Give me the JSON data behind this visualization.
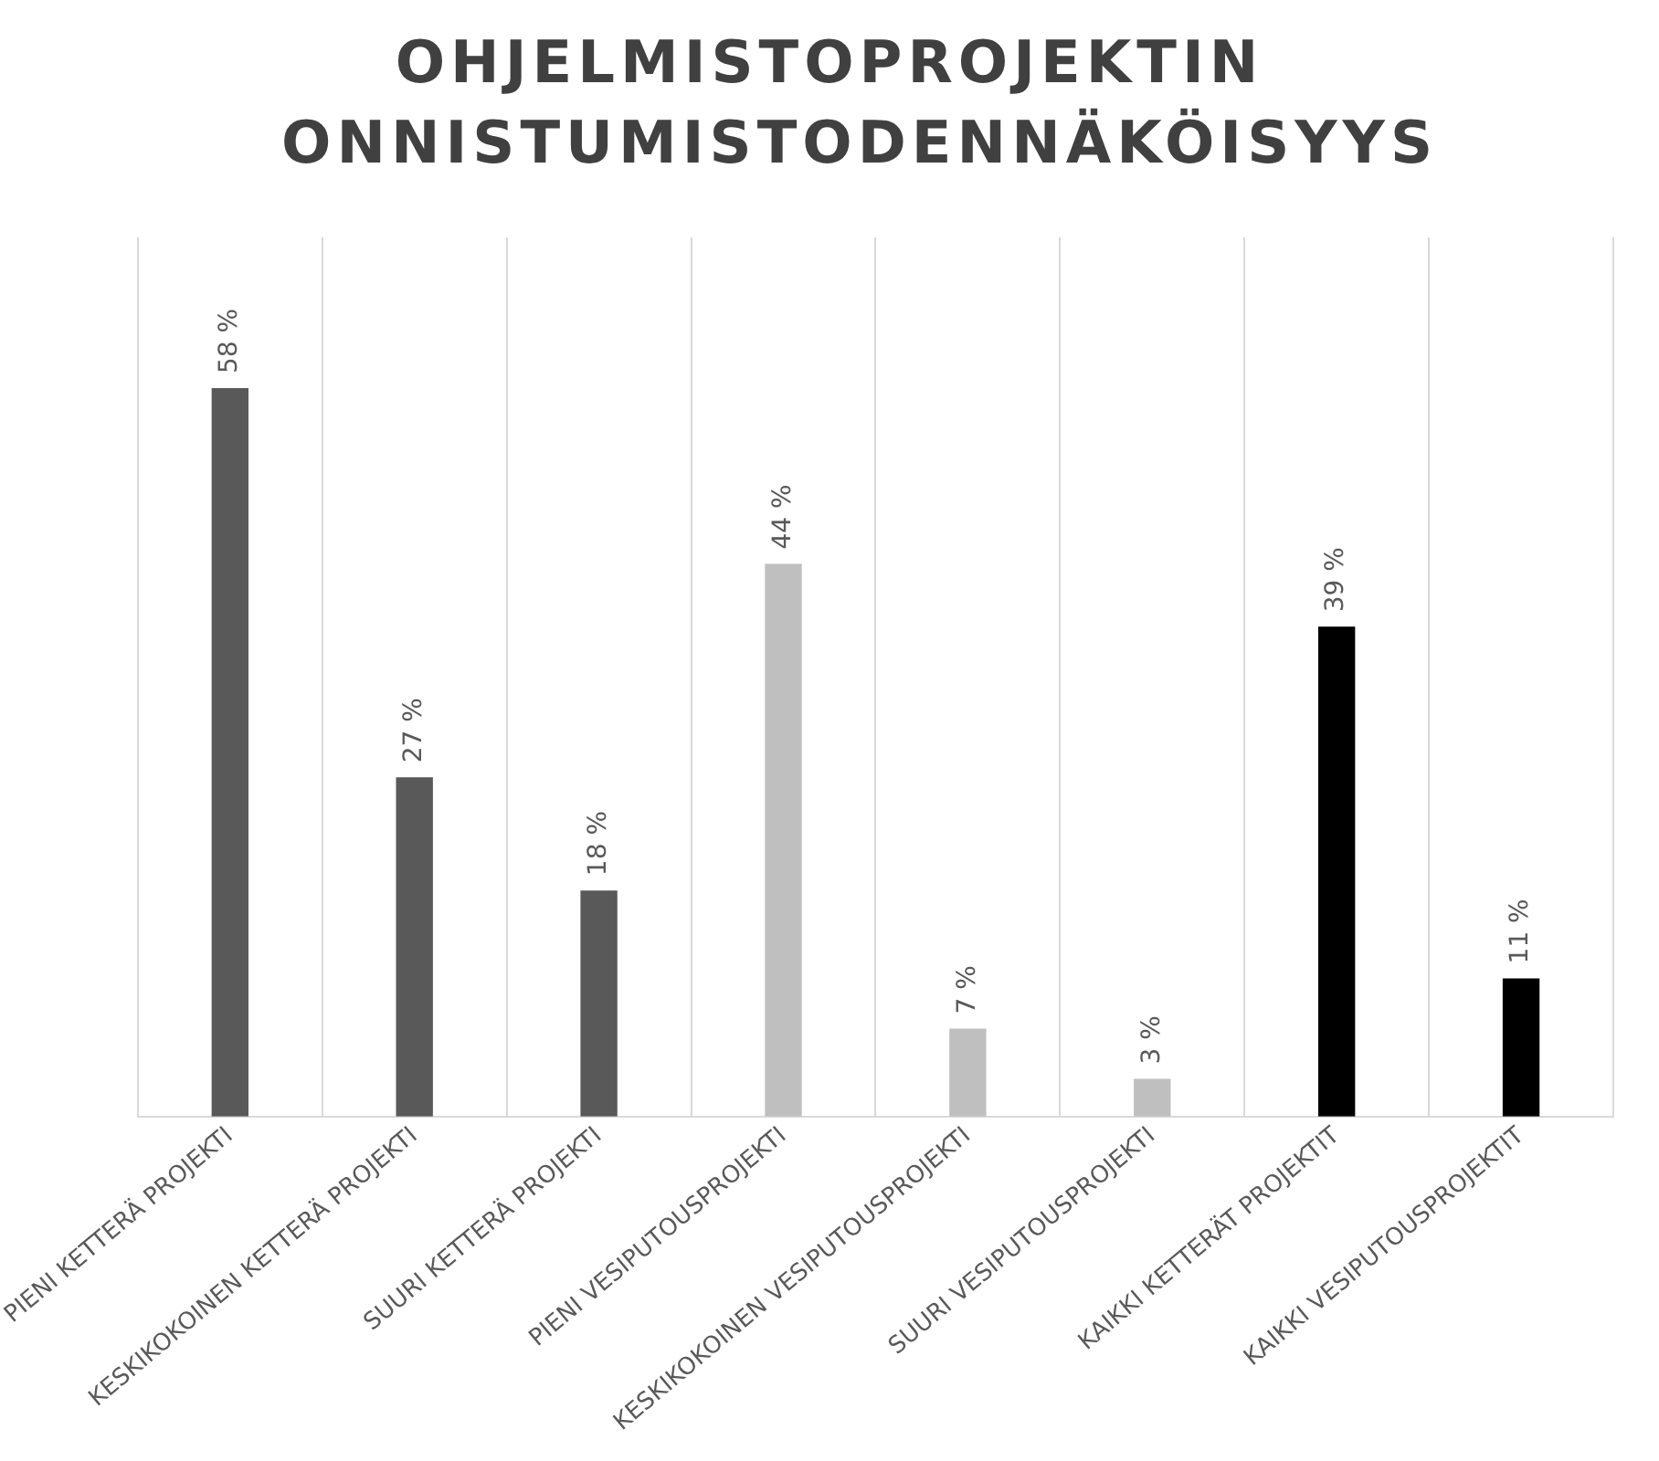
{
  "chart_data": {
    "type": "bar",
    "title": "OHJELMISTOPROJEKTIN ONNISTUMISTODENNÄKÖISYYS",
    "categories": [
      "PIENI KETTERÄ PROJEKTI",
      "KESKIKOKOINEN KETTERÄ PROJEKTI",
      "SUURI KETTERÄ PROJEKTI",
      "PIENI VESIPUTOUSPROJEKTI",
      "KESKIKOKOINEN VESIPUTOUSPROJEKTI",
      "SUURI VESIPUTOUSPROJEKTI",
      "KAIKKI KETTERÄT PROJEKTIT",
      "KAIKKI VESIPUTOUSPROJEKTIT"
    ],
    "values": [
      58,
      27,
      18,
      44,
      7,
      3,
      39,
      11
    ],
    "colors": [
      "#595959",
      "#595959",
      "#595959",
      "#bfbfbf",
      "#bfbfbf",
      "#bfbfbf",
      "#000000",
      "#000000"
    ],
    "value_labels": [
      "58 %",
      "27 %",
      "18 %",
      "44 %",
      "7 %",
      "3 %",
      "39 %",
      "11 %"
    ],
    "ylim": [
      0,
      70
    ],
    "tick_labels": "x",
    "grid": "x",
    "legend": false
  }
}
